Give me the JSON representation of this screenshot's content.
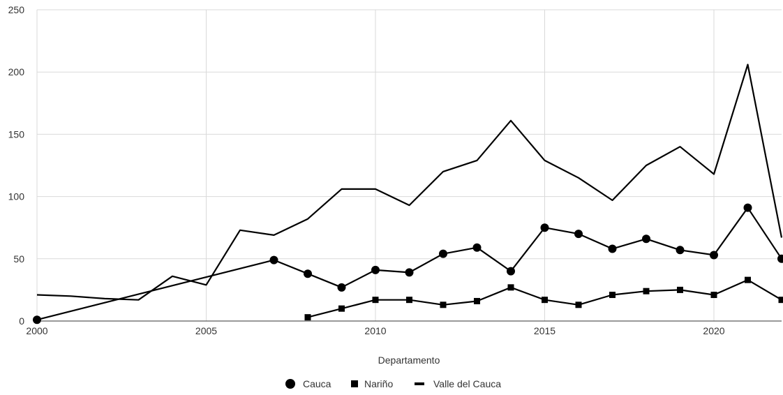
{
  "chart_data": {
    "type": "line",
    "title": "",
    "xlabel": "Departamento",
    "ylabel": "",
    "xlim": [
      2000,
      2022
    ],
    "ylim": [
      0,
      250
    ],
    "x_ticks": [
      2000,
      2005,
      2010,
      2015,
      2020
    ],
    "y_ticks": [
      0,
      50,
      100,
      150,
      200,
      250
    ],
    "grid": true,
    "legend_position": "bottom",
    "series": [
      {
        "name": "Cauca",
        "marker": "circle",
        "color": "#000000",
        "points": [
          [
            2000,
            1
          ],
          [
            2007,
            49
          ],
          [
            2008,
            38
          ],
          [
            2009,
            27
          ],
          [
            2010,
            41
          ],
          [
            2011,
            39
          ],
          [
            2012,
            54
          ],
          [
            2013,
            59
          ],
          [
            2014,
            40
          ],
          [
            2015,
            75
          ],
          [
            2016,
            70
          ],
          [
            2017,
            58
          ],
          [
            2018,
            66
          ],
          [
            2019,
            57
          ],
          [
            2020,
            53
          ],
          [
            2021,
            91
          ],
          [
            2022,
            50
          ]
        ]
      },
      {
        "name": "Nariño",
        "marker": "square",
        "color": "#000000",
        "points": [
          [
            2008,
            3
          ],
          [
            2009,
            10
          ],
          [
            2010,
            17
          ],
          [
            2011,
            17
          ],
          [
            2012,
            13
          ],
          [
            2013,
            16
          ],
          [
            2014,
            27
          ],
          [
            2015,
            17
          ],
          [
            2016,
            13
          ],
          [
            2017,
            21
          ],
          [
            2018,
            24
          ],
          [
            2019,
            25
          ],
          [
            2020,
            21
          ],
          [
            2021,
            33
          ],
          [
            2022,
            17
          ]
        ]
      },
      {
        "name": "Valle del Cauca",
        "marker": "none",
        "color": "#000000",
        "points": [
          [
            2000,
            21
          ],
          [
            2001,
            20
          ],
          [
            2002,
            18
          ],
          [
            2003,
            17
          ],
          [
            2004,
            36
          ],
          [
            2005,
            29
          ],
          [
            2006,
            73
          ],
          [
            2007,
            69
          ],
          [
            2008,
            82
          ],
          [
            2009,
            106
          ],
          [
            2010,
            106
          ],
          [
            2011,
            93
          ],
          [
            2012,
            120
          ],
          [
            2013,
            129
          ],
          [
            2014,
            161
          ],
          [
            2015,
            129
          ],
          [
            2016,
            115
          ],
          [
            2017,
            97
          ],
          [
            2018,
            125
          ],
          [
            2019,
            140
          ],
          [
            2020,
            118
          ],
          [
            2021,
            206
          ],
          [
            2022,
            67
          ]
        ]
      }
    ]
  }
}
